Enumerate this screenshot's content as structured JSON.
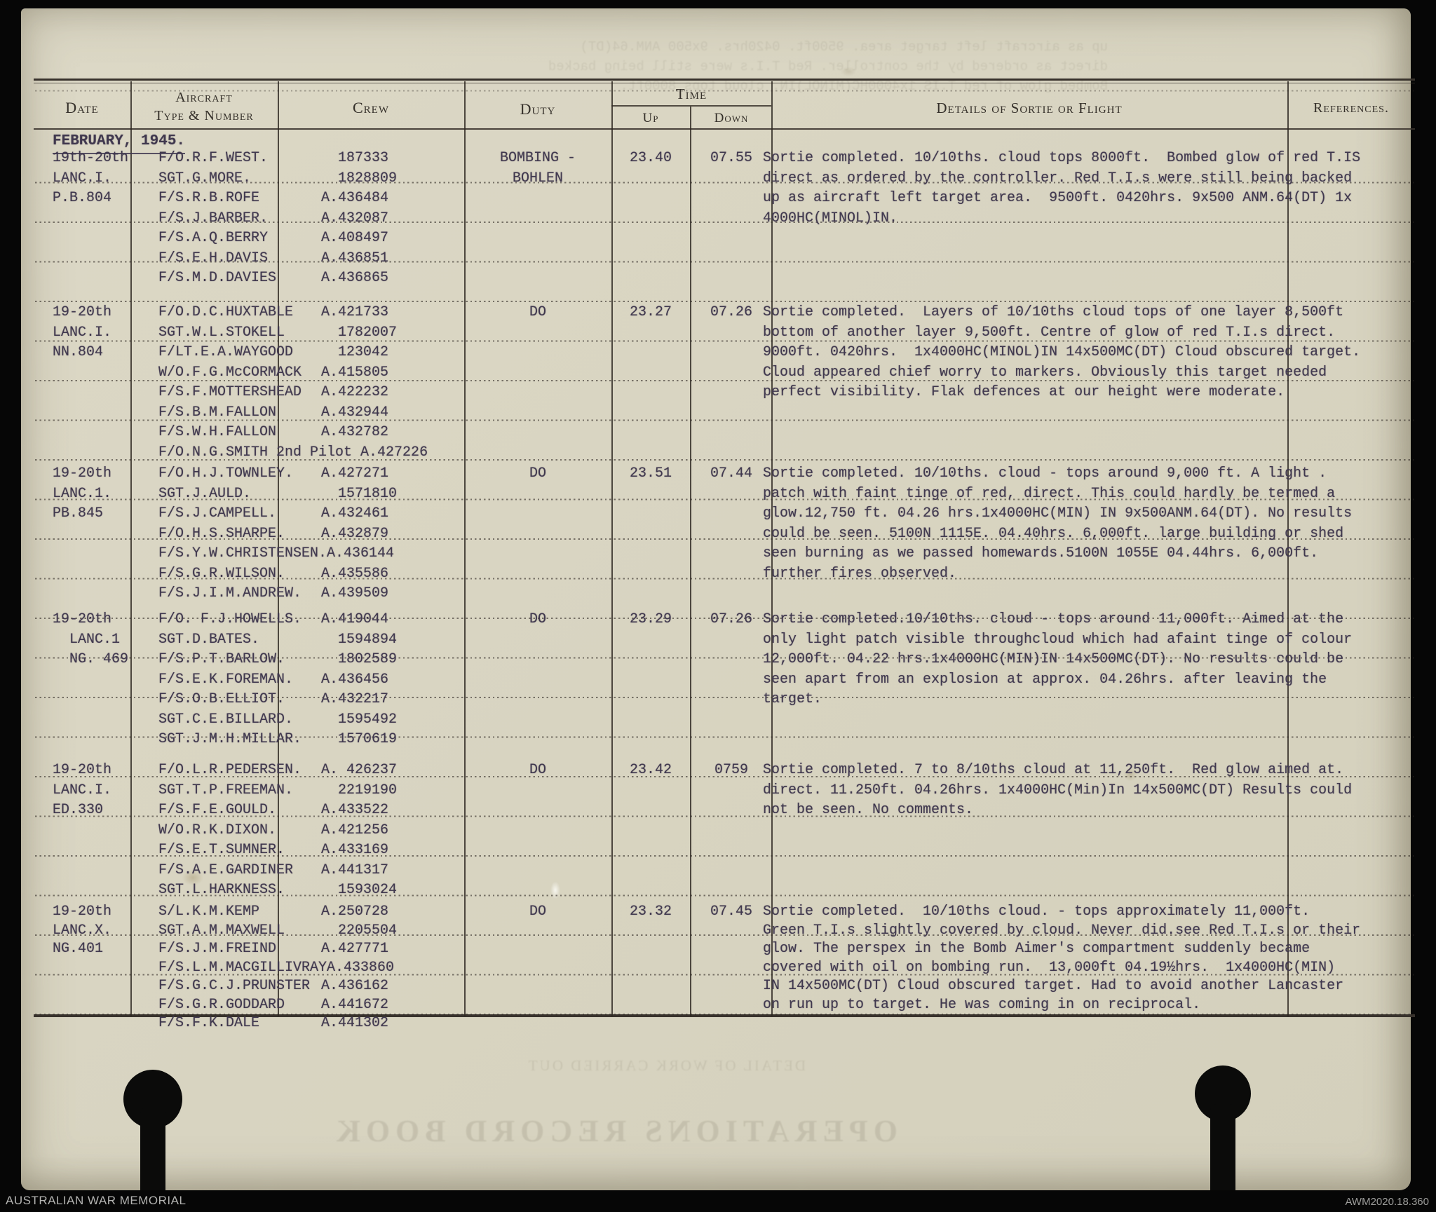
{
  "colors": {
    "paper": "#d9d5c2",
    "ink_typed": "#40384e",
    "ink_printed": "#35302a",
    "scan_background": "#000000"
  },
  "page": {
    "footer_left": "AUSTRALIAN WAR MEMORIAL",
    "footer_right": "AWM2020.18.360"
  },
  "table": {
    "headers": {
      "date": "Date",
      "aircraft_line1": "Aircraft",
      "aircraft_line2": "Type & Number",
      "crew": "Crew",
      "duty": "Duty",
      "time": "Time",
      "up": "Up",
      "down": "Down",
      "details": "Details of Sortie or Flight",
      "references": "References."
    },
    "month_label": "FEBRUARY, 1945.",
    "sorties": [
      {
        "date_lines": [
          "19th-20th",
          "LANC.I.",
          "P.B.804"
        ],
        "crew": [
          {
            "name": "F/O.R.F.WEST.",
            "number": "  187333"
          },
          {
            "name": "SGT.G.MORE.",
            "number": "  1828809"
          },
          {
            "name": "F/S.R.B.ROFE",
            "number": "A.436484"
          },
          {
            "name": "F/S.J.BARBER.",
            "number": "A.432087"
          },
          {
            "name": "F/S.A.Q.BERRY",
            "number": "A.408497"
          },
          {
            "name": "F/S.E.H.DAVIS",
            "number": "A.436851"
          },
          {
            "name": "F/S.M.D.DAVIES",
            "number": "A.436865"
          }
        ],
        "duty_lines": [
          "BOMBING -",
          "BOHLEN"
        ],
        "up": "23.40",
        "down": "07.55",
        "details_lines": [
          "Sortie completed. 10/10ths. cloud tops 8000ft.  Bombed glow of red T.IS",
          "direct as ordered by the controller. Red T.I.s were still being backed",
          "up as aircraft left target area.  9500ft. 0420hrs. 9x500 ANM.64(DT) 1x",
          "4000HC(MINOL)IN."
        ]
      },
      {
        "date_lines": [
          "19-20th",
          "LANC.I.",
          "NN.804"
        ],
        "crew": [
          {
            "name": "F/O.D.C.HUXTABLE",
            "number": "A.421733"
          },
          {
            "name": "SGT.W.L.STOKELL",
            "number": "  1782007"
          },
          {
            "name": "F/LT.E.A.WAYGOOD",
            "number": "  123042"
          },
          {
            "name": "W/O.F.G.McCORMACK",
            "number": "A.415805"
          },
          {
            "name": "F/S.F.MOTTERSHEAD",
            "number": "A.422232"
          },
          {
            "name": "F/S.B.M.FALLON",
            "number": "A.432944"
          },
          {
            "name": "F/S.W.H.FALLON",
            "number": "A.432782"
          },
          {
            "name": "F/O.N.G.SMITH 2nd Pilot",
            "number": " A.427226"
          }
        ],
        "duty_lines": [
          "DO"
        ],
        "up": "23.27",
        "down": "07.26",
        "details_lines": [
          "Sortie completed.  Layers of 10/10ths cloud tops of one layer 8,500ft",
          "bottom of another layer 9,500ft. Centre of glow of red T.I.s direct.",
          "9000ft. 0420hrs.  1x4000HC(MINOL)IN 14x500MC(DT) Cloud obscured target.",
          "Cloud appeared chief worry to markers. Obviously this target needed",
          "perfect visibility. Flak defences at our height were moderate."
        ]
      },
      {
        "date_lines": [
          "19-20th",
          "LANC.1.",
          "PB.845"
        ],
        "crew": [
          {
            "name": "F/O.H.J.TOWNLEY.",
            "number": "A.427271"
          },
          {
            "name": "SGT.J.AULD.",
            "number": "  1571810"
          },
          {
            "name": "F/S.J.CAMPELL.",
            "number": "A.432461"
          },
          {
            "name": "F/O.H.S.SHARPE.",
            "number": "A.432879"
          },
          {
            "name": "F/S.Y.W.CHRISTENSEN.",
            "number": "A.436144"
          },
          {
            "name": "F/S.G.R.WILSON.",
            "number": "A.435586"
          },
          {
            "name": "F/S.J.I.M.ANDREW.",
            "number": "A.439509"
          }
        ],
        "duty_lines": [
          "DO"
        ],
        "up": "23.51",
        "down": "07.44",
        "details_lines": [
          "Sortie completed. 10/10ths. cloud - tops around 9,000 ft. A light .",
          "patch with faint tinge of red, direct. This could hardly be termed a",
          "glow.12,750 ft. 04.26 hrs.1x4000HC(MIN) IN 9x500ANM.64(DT). No results",
          "could be seen. 5100N 1115E. 04.40hrs. 6,000ft. large building or shed",
          "seen burning as we passed homewards.5100N 1055E 04.44hrs. 6,000ft.",
          "further fires observed."
        ]
      },
      {
        "date_lines": [
          "19-20th",
          "  LANC.1",
          "  NG. 469"
        ],
        "crew": [
          {
            "name": "F/O. F.J.HOWELLS.",
            "number": "A.419044"
          },
          {
            "name": "SGT.D.BATES.",
            "number": "  1594894"
          },
          {
            "name": "F/S.P.T.BARLOW.",
            "number": "  1802589"
          },
          {
            "name": "F/S.E.K.FOREMAN.",
            "number": "A.436456"
          },
          {
            "name": "F/S.O.B.ELLIOT.",
            "number": "A.432217"
          },
          {
            "name": "SGT.C.E.BILLARD.",
            "number": "  1595492"
          },
          {
            "name": "SGT.J.M.H.MILLAR.",
            "number": "  1570619"
          }
        ],
        "duty_lines": [
          "DO"
        ],
        "up": "23.29",
        "down": "07.26",
        "details_lines": [
          "Sortie completed.10/10ths. cloud - tops around 11,000ft. Aimed at the",
          "only light patch visible throughcloud which had afaint tinge of colour",
          "12,000ft. 04.22 hrs.1x4000HC(MIN)IN 14x500MC(DT). No results could be",
          "seen apart from an explosion at approx. 04.26hrs. after leaving the",
          "target."
        ]
      },
      {
        "date_lines": [
          "19-20th",
          "LANC.I.",
          "ED.330"
        ],
        "crew": [
          {
            "name": "F/O.L.R.PEDERSEN.",
            "number": "A. 426237"
          },
          {
            "name": "SGT.T.P.FREEMAN.",
            "number": "  2219190"
          },
          {
            "name": "F/S.F.E.GOULD.",
            "number": "A.433522"
          },
          {
            "name": "W/O.R.K.DIXON.",
            "number": "A.421256"
          },
          {
            "name": "F/S.E.T.SUMNER.",
            "number": "A.433169"
          },
          {
            "name": "F/S.A.E.GARDINER",
            "number": "A.441317"
          },
          {
            "name": "SGT.L.HARKNESS.",
            "number": "  1593024"
          }
        ],
        "duty_lines": [
          "DO"
        ],
        "up": "23.42",
        "down": "0759",
        "details_lines": [
          "Sortie completed. 7 to 8/10ths cloud at 11,250ft.  Red glow aimed at.",
          "direct. 11.250ft. 04.26hrs. 1x4000HC(Min)In 14x500MC(DT) Results could",
          "not be seen. No comments."
        ]
      },
      {
        "date_lines": [
          "19-20th",
          "LANC.X.",
          "NG.401"
        ],
        "crew": [
          {
            "name": "S/L.K.M.KEMP",
            "number": "A.250728"
          },
          {
            "name": "SGT.A.M.MAXWELL",
            "number": "  2205504"
          },
          {
            "name": "F/S.J.M.FREIND",
            "number": "A.427771"
          },
          {
            "name": "F/S.L.M.MACGILLIVRAY",
            "number": "A.433860"
          },
          {
            "name": "F/S.G.C.J.PRUNSTER",
            "number": "A.436162"
          },
          {
            "name": "F/S.G.R.GODDARD",
            "number": "A.441672"
          },
          {
            "name": "F/S.F.K.DALE",
            "number": "A.441302"
          }
        ],
        "duty_lines": [
          "DO"
        ],
        "up": "23.32",
        "down": "07.45",
        "details_lines": [
          "Sortie completed.  10/10ths cloud. - tops approximately 11,000ft.",
          "Green T.I.s slightly covered by cloud. Never did.see Red T.I.s or their",
          "glow. The perspex in the Bomb Aimer's compartment suddenly became",
          "covered with oil on bombing run.  13,000ft 04.19½hrs.  1x4000HC(MIN)",
          "IN 14x500MC(DT) Cloud obscured target. Had to avoid another Lancaster",
          "on run up to target. He was coming in on reciprocal."
        ]
      }
    ]
  },
  "ghost": {
    "title": "OPERATIONS RECORD BOOK",
    "subtitle": "DETAIL OF WORK CARRIED OUT",
    "bleed_lines": [
      "up as aircraft left target area. 9500ft. 0420hrs. 9x500 ANM.64(DT)",
      "direct as ordered by the controller. Red T.I.s were still being backed",
      "Bombed glow of red T.IS 1x4000HC(MINOL)IN. cloud tops 8000ft."
    ]
  }
}
